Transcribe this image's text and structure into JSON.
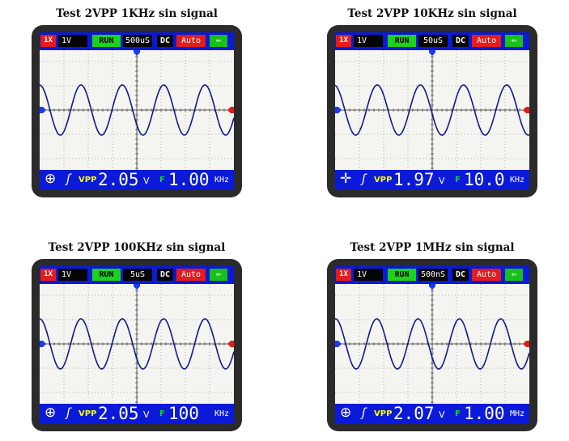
{
  "panels": [
    {
      "title": "Test 2VPP 1KHz sin signal",
      "probe": "1X",
      "volts_div": "1V",
      "run_state": "RUN",
      "timebase": "500uS",
      "coupling": "DC",
      "trigger_mode": "Auto",
      "battery": "⇦",
      "position_icon": "⊕",
      "trigger_icon": "ʃ",
      "vpp_label": "VPP",
      "vpp_value": "2.05",
      "vpp_unit": "V",
      "freq_label": "F",
      "freq_value": "1.00",
      "freq_unit": "KHz",
      "cycles": 4.7,
      "phase": 0.0,
      "colors": {
        "trace": "#101a8a"
      }
    },
    {
      "title": "Test 2VPP 10KHz sin signal",
      "probe": "1X",
      "volts_div": "1V",
      "run_state": "RUN",
      "timebase": "50uS",
      "coupling": "DC",
      "trigger_mode": "Auto",
      "battery": "⇦",
      "position_icon": "✛",
      "trigger_icon": "ʃ",
      "vpp_label": "VPP",
      "vpp_value": "1.97",
      "vpp_unit": "V",
      "freq_label": "F",
      "freq_value": "10.0",
      "freq_unit": "KHz",
      "cycles": 4.5,
      "phase": 0.15,
      "colors": {
        "trace": "#101a8a"
      }
    },
    {
      "title": "Test 2VPP 100KHz sin signal",
      "probe": "1X",
      "volts_div": "1V",
      "run_state": "RUN",
      "timebase": "5uS",
      "coupling": "DC",
      "trigger_mode": "Auto",
      "battery": "⇦",
      "position_icon": "⊕",
      "trigger_icon": "ʃ",
      "vpp_label": "VPP",
      "vpp_value": "2.05",
      "vpp_unit": "V",
      "freq_label": "F",
      "freq_value": "100",
      "freq_unit": "KHz",
      "cycles": 4.7,
      "phase": 0.0,
      "colors": {
        "trace": "#101a8a"
      }
    },
    {
      "title": "Test 2VPP 1MHz sin signal",
      "probe": "1X",
      "volts_div": "1V",
      "run_state": "RUN",
      "timebase": "500nS",
      "coupling": "DC",
      "trigger_mode": "Auto",
      "battery": "⇦",
      "position_icon": "⊕",
      "trigger_icon": "ʃ",
      "vpp_label": "VPP",
      "vpp_value": "2.07",
      "vpp_unit": "V",
      "freq_label": "F",
      "freq_value": "1.00",
      "freq_unit": "MHz",
      "cycles": 4.7,
      "phase": -0.05,
      "colors": {
        "trace": "#101a8a"
      }
    }
  ]
}
